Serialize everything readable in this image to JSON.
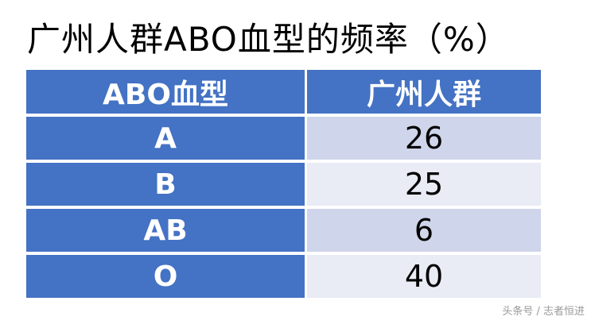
{
  "title": "广州人群ABO血型的频率（%）",
  "table": {
    "headers": [
      "ABO血型",
      "广州人群"
    ],
    "rows": [
      {
        "type": "A",
        "value": "26"
      },
      {
        "type": "B",
        "value": "25"
      },
      {
        "type": "AB",
        "value": "6"
      },
      {
        "type": "O",
        "value": "40"
      }
    ]
  },
  "colors": {
    "header": "#4472C4",
    "row_odd": "#CFD5EA",
    "row_even": "#E9EBF5"
  },
  "watermark": "头条号 / 志者恒进"
}
